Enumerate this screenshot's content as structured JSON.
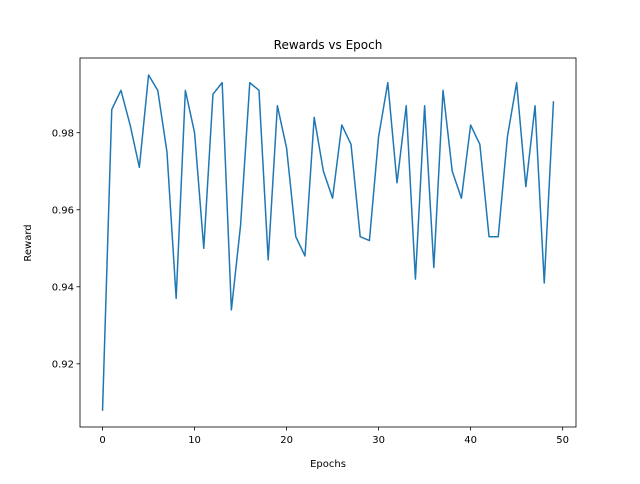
{
  "chart_data": {
    "type": "line",
    "title": "Rewards vs Epoch",
    "xlabel": "Epochs",
    "ylabel": "Reward",
    "xlim": [
      -2.45,
      51.45
    ],
    "ylim": [
      0.9036,
      0.9994
    ],
    "xticks": [
      0,
      10,
      20,
      30,
      40,
      50
    ],
    "yticks": [
      0.92,
      0.94,
      0.96,
      0.98
    ],
    "ytick_labels": [
      "0.92",
      "0.94",
      "0.96",
      "0.98"
    ],
    "grid": false,
    "legend": "none",
    "series": [
      {
        "color": "#1f77b4",
        "x": [
          0,
          1,
          2,
          3,
          4,
          5,
          6,
          7,
          8,
          9,
          10,
          11,
          12,
          13,
          14,
          15,
          16,
          17,
          18,
          19,
          20,
          21,
          22,
          23,
          24,
          25,
          26,
          27,
          28,
          29,
          30,
          31,
          32,
          33,
          34,
          35,
          36,
          37,
          38,
          39,
          40,
          41,
          42,
          43,
          44,
          45,
          46,
          47,
          48,
          49
        ],
        "values": [
          0.908,
          0.986,
          0.991,
          0.982,
          0.971,
          0.995,
          0.991,
          0.975,
          0.937,
          0.991,
          0.98,
          0.95,
          0.99,
          0.993,
          0.934,
          0.956,
          0.993,
          0.991,
          0.947,
          0.987,
          0.976,
          0.953,
          0.948,
          0.984,
          0.97,
          0.963,
          0.982,
          0.977,
          0.953,
          0.952,
          0.979,
          0.993,
          0.967,
          0.987,
          0.942,
          0.987,
          0.945,
          0.991,
          0.97,
          0.963,
          0.982,
          0.977,
          0.953,
          0.953,
          0.979,
          0.993,
          0.966,
          0.987,
          0.941,
          0.988
        ]
      }
    ]
  }
}
